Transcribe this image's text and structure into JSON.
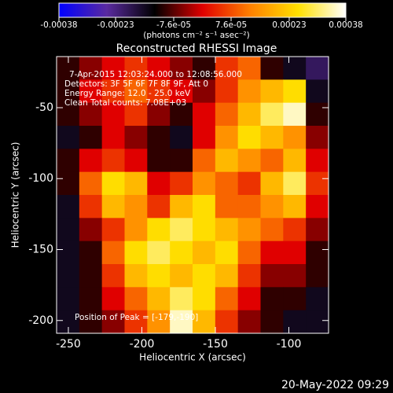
{
  "chart_data": {
    "type": "heatmap",
    "title": "Reconstructed RHESSI Image",
    "xlabel": "Heliocentric X (arcsec)",
    "ylabel": "Heliocentric Y (arcsec)",
    "xlim": [
      -258,
      -73
    ],
    "ylim": [
      -209,
      -14
    ],
    "xticks": [
      -250,
      -200,
      -150,
      -100
    ],
    "yticks": [
      -200,
      -150,
      -100,
      -50
    ],
    "zlim": [
      -0.00038,
      0.00038
    ],
    "colorbar_label": "(photons cm⁻² s⁻¹ asec⁻²)",
    "colorbar_ticks": [
      -0.00038,
      -0.00023,
      {
        "value": -7.6e-05,
        "label": "-7.6e-05"
      },
      {
        "value": 7.6e-05,
        "label": "7.6e-05"
      },
      0.00023,
      0.00038
    ],
    "colormap": [
      "#0000ff",
      "#5a2aa0",
      "#000000",
      "#e00000",
      "#ff8000",
      "#ffe000",
      "#ffffff"
    ],
    "annotations": [
      "7-Apr-2015 12:03:24.000 to 12:08:56.000",
      "Detectors: 3F 5F 6F 7F 8F 9F, Att 0",
      "Energy Range: 12.0 - 25.0 keV",
      "Clean     Total counts: 7.08E+03",
      "Position of Peak = [-179,-190]"
    ],
    "footer": "20-May-2022 09:29",
    "z": [
      [
        -0.0001,
        -5e-05,
        0,
        5e-05,
        0,
        -5e-05,
        -0.0001,
        5e-05,
        0.0001,
        -0.0001,
        -0.00015,
        -0.0002
      ],
      [
        -0.0001,
        0,
        5e-05,
        0.0001,
        5e-05,
        0,
        -5e-05,
        5e-05,
        0.00015,
        0.0002,
        0.00025,
        -0.00015
      ],
      [
        -0.0001,
        -5e-05,
        0,
        5e-05,
        -5e-05,
        -0.0001,
        0,
        0.0001,
        0.0002,
        0.0003,
        0.00035,
        -0.0001
      ],
      [
        -0.00015,
        -0.0001,
        0,
        -5e-05,
        -0.0001,
        -0.00015,
        0,
        0.00015,
        0.00025,
        0.0002,
        0.00015,
        -5e-05
      ],
      [
        -0.0001,
        0,
        5e-05,
        0,
        -0.0001,
        -0.0001,
        0.0001,
        0.0002,
        0.00015,
        0.0001,
        0.0002,
        0
      ],
      [
        -0.0001,
        0.0001,
        0.00025,
        0.0002,
        0,
        5e-05,
        0.00015,
        0.0001,
        5e-05,
        0.0002,
        0.0003,
        5e-05
      ],
      [
        -0.00015,
        5e-05,
        0.0002,
        0.00015,
        5e-05,
        0.0002,
        0.00025,
        0.0001,
        0.0001,
        0.00015,
        0.0002,
        0
      ],
      [
        -0.00015,
        -5e-05,
        5e-05,
        0.00015,
        0.00025,
        0.0003,
        0.00025,
        0.0002,
        0.00015,
        0.0001,
        5e-05,
        -5e-05
      ],
      [
        -0.00015,
        -0.0001,
        0.0001,
        0.00025,
        0.0003,
        0.00025,
        0.0002,
        0.00025,
        0.0001,
        0,
        0,
        -0.0001
      ],
      [
        -0.00015,
        -0.0001,
        5e-05,
        0.0002,
        0.00025,
        0.0002,
        0.00025,
        0.0002,
        5e-05,
        -5e-05,
        -5e-05,
        -0.0001
      ],
      [
        -0.00015,
        -0.0001,
        0,
        0.0001,
        0.0002,
        0.0003,
        0.00025,
        0.0001,
        0,
        -0.0001,
        -0.0001,
        -0.00015
      ],
      [
        -0.00015,
        -0.0001,
        -5e-05,
        5e-05,
        0.00015,
        0.00035,
        0.0002,
        5e-05,
        -5e-05,
        -0.0001,
        -0.00015,
        -0.00015
      ]
    ]
  }
}
